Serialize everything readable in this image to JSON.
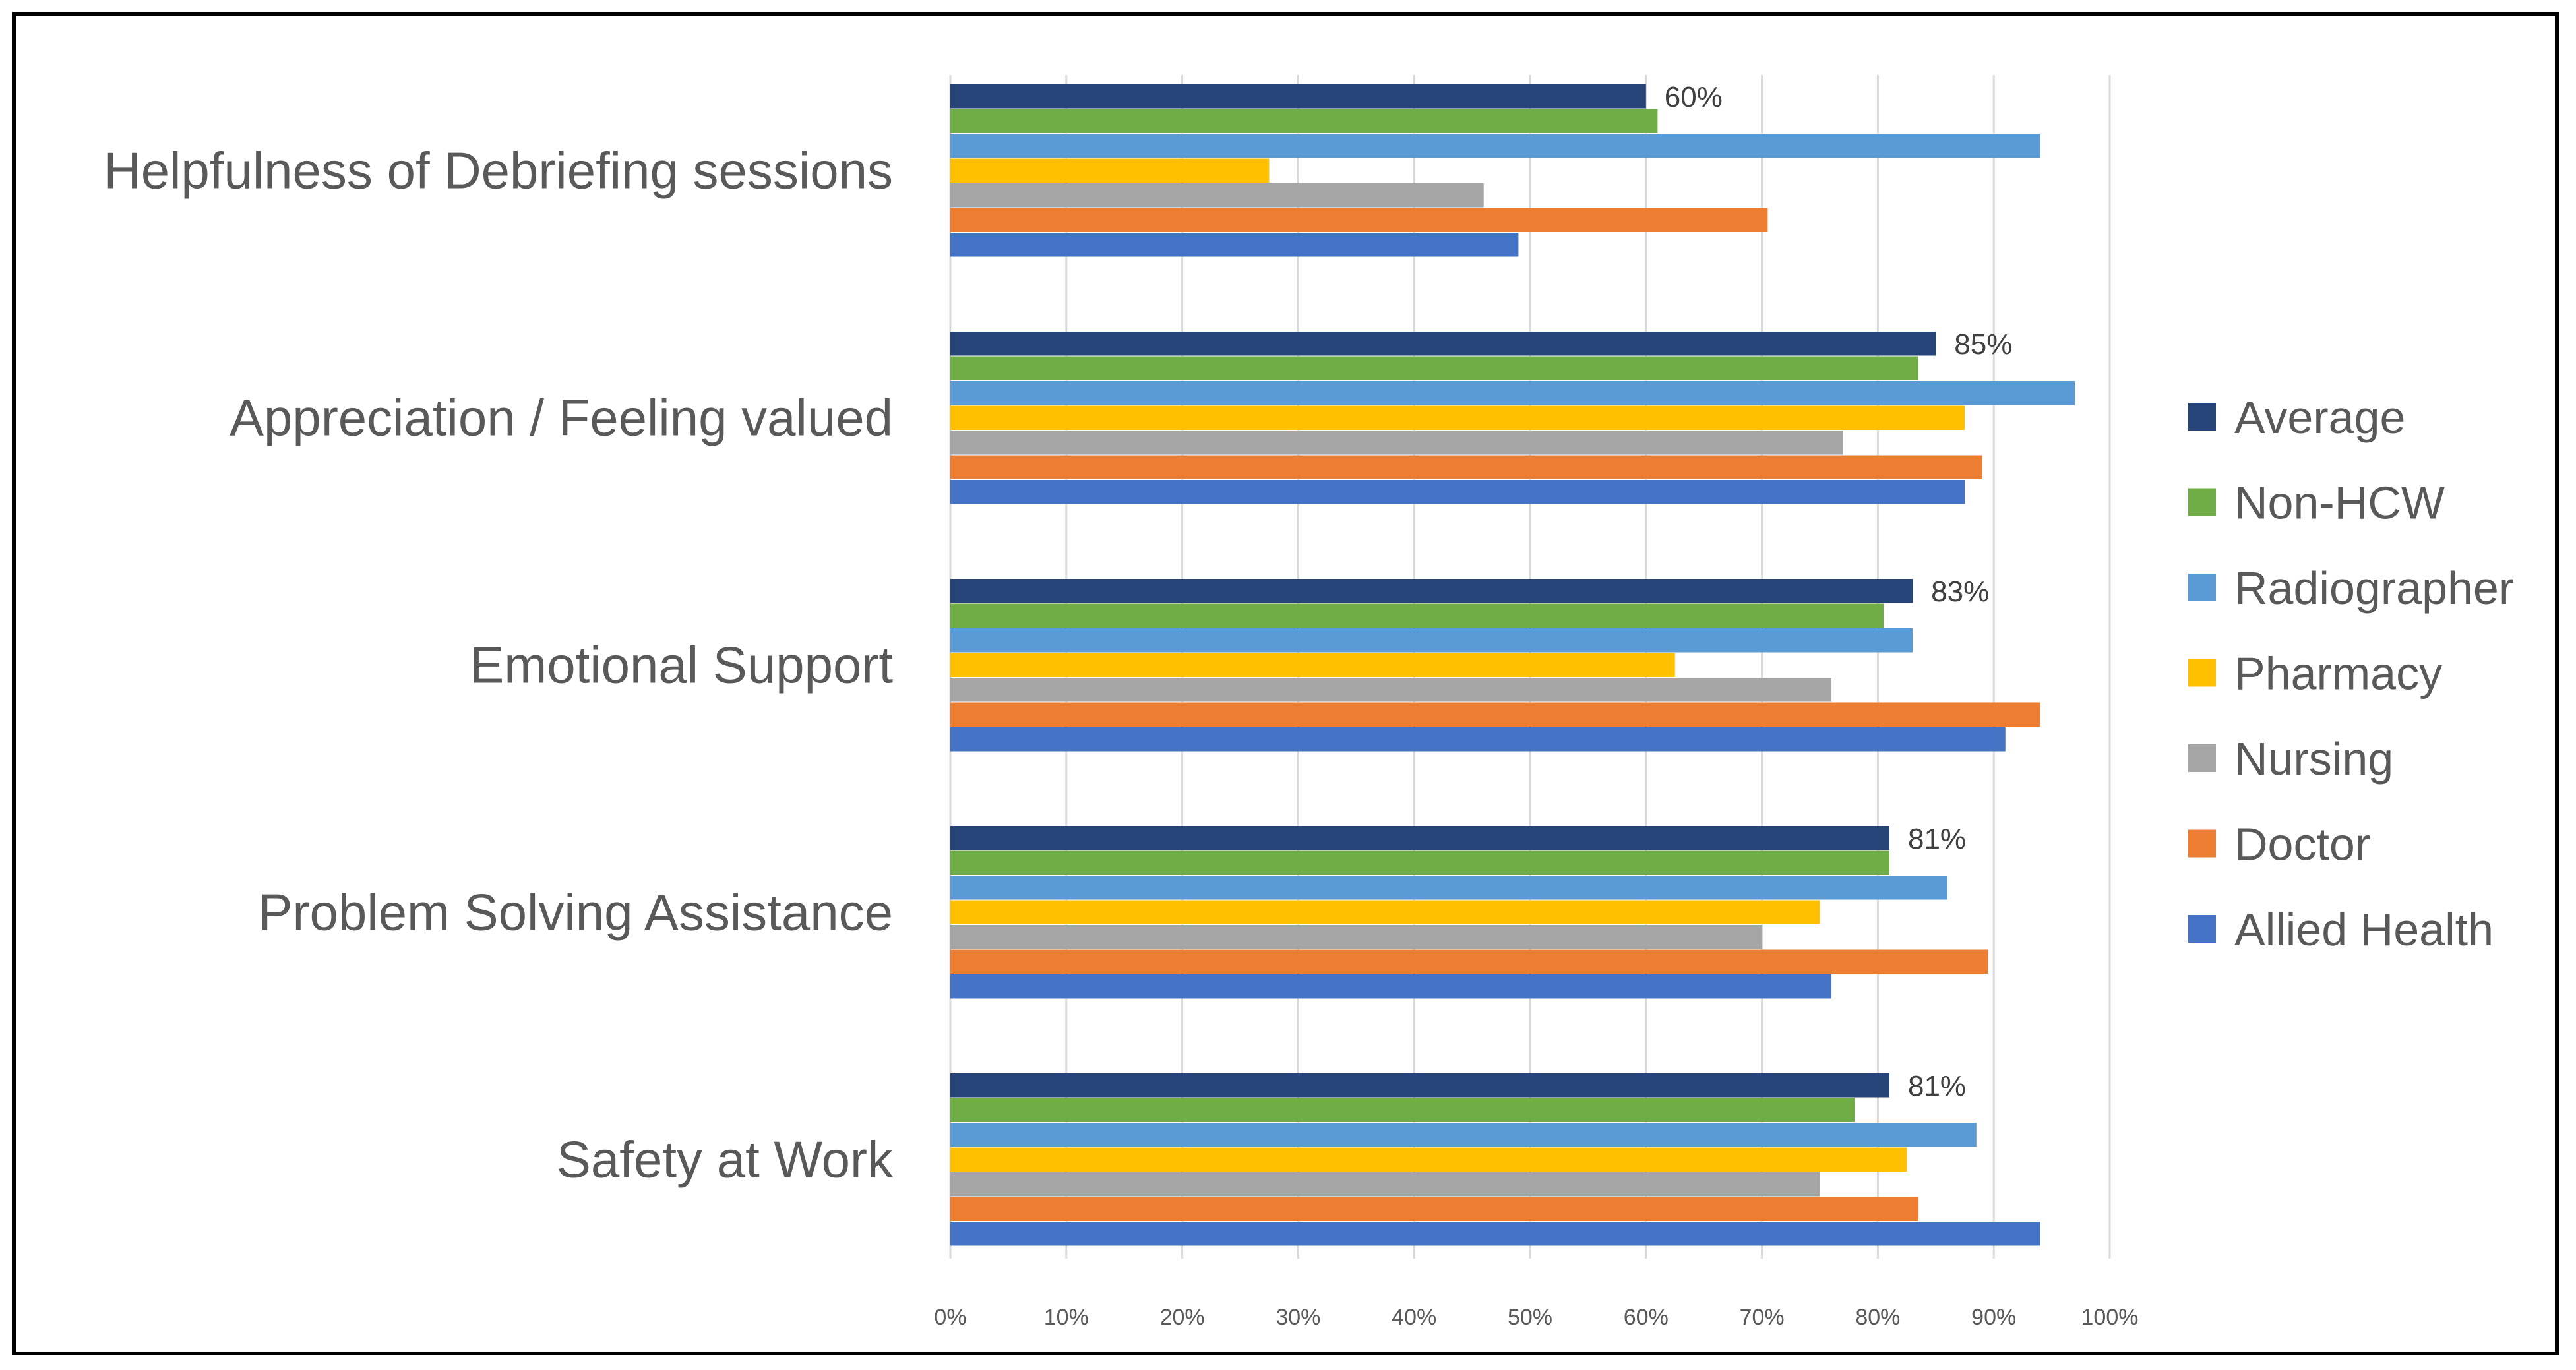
{
  "chart_data": {
    "type": "bar",
    "orientation": "horizontal",
    "title": "",
    "xlabel": "",
    "ylabel": "",
    "xlim": [
      0,
      100
    ],
    "tick_labels": [
      "0%",
      "10%",
      "20%",
      "30%",
      "40%",
      "50%",
      "60%",
      "70%",
      "80%",
      "90%",
      "100%"
    ],
    "grid": "vertical",
    "legend_position": "right",
    "categories": [
      "Helpfulness of Debriefing sessions",
      "Appreciation / Feeling valued",
      "Emotional Support",
      "Problem Solving Assistance",
      "Safety at Work"
    ],
    "series": [
      {
        "name": "Average",
        "color": "#264478",
        "values": [
          60,
          85,
          83,
          81,
          81
        ]
      },
      {
        "name": "Non-HCW",
        "color": "#70AD47",
        "values": [
          61,
          83.5,
          80.5,
          81,
          78
        ]
      },
      {
        "name": "Radiographer",
        "color": "#5B9BD5",
        "values": [
          94,
          97,
          83,
          86,
          88.5
        ]
      },
      {
        "name": "Pharmacy",
        "color": "#FFC000",
        "values": [
          27.5,
          87.5,
          62.5,
          75,
          82.5
        ]
      },
      {
        "name": "Nursing",
        "color": "#A5A5A5",
        "values": [
          46,
          77,
          76,
          70,
          75
        ]
      },
      {
        "name": "Doctor",
        "color": "#ED7D31",
        "values": [
          70.5,
          89,
          94,
          89.5,
          83.5
        ]
      },
      {
        "name": "Allied Health",
        "color": "#4472C4",
        "values": [
          49,
          87.5,
          91,
          76,
          94
        ]
      }
    ],
    "data_labels": [
      {
        "series": "Average",
        "category": "Helpfulness of Debriefing sessions",
        "text": "60%"
      },
      {
        "series": "Average",
        "category": "Appreciation / Feeling valued",
        "text": "85%"
      },
      {
        "series": "Average",
        "category": "Emotional Support",
        "text": "83%"
      },
      {
        "series": "Average",
        "category": "Problem Solving Assistance",
        "text": "81%"
      },
      {
        "series": "Average",
        "category": "Safety at Work",
        "text": "81%"
      }
    ],
    "legend": [
      "Average",
      "Non-HCW",
      "Radiographer",
      "Pharmacy",
      "Nursing",
      "Doctor",
      "Allied Health"
    ]
  }
}
